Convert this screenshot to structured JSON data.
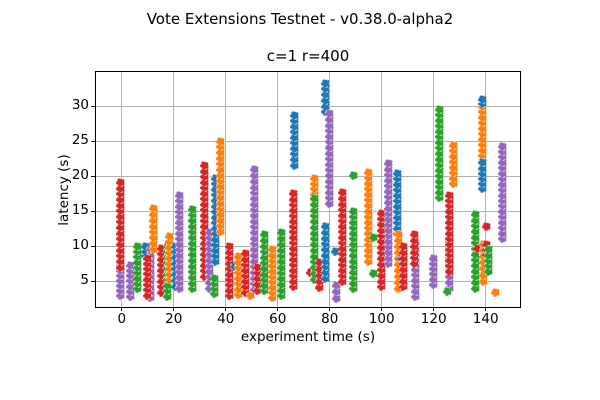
{
  "figure": {
    "suptitle": "Vote Extensions Testnet - v0.38.0-alpha2",
    "axes_title": "c=1 r=400",
    "xlabel": "experiment time (s)",
    "ylabel": "latency (s)"
  },
  "chart_data": {
    "type": "scatter",
    "title": "c=1 r=400",
    "suptitle": "Vote Extensions Testnet - v0.38.0-alpha2",
    "xlabel": "experiment time (s)",
    "ylabel": "latency (s)",
    "xlim": [
      -9.9,
      153.2
    ],
    "ylim": [
      1.3,
      34.9
    ],
    "xticks": [
      0,
      20,
      40,
      60,
      80,
      100,
      120,
      140
    ],
    "yticks": [
      5,
      10,
      15,
      20,
      25,
      30
    ],
    "grid": true,
    "grid_color": "#b2b2b2",
    "legend": "none",
    "marker_size_px": 9,
    "point_spacing_units": 0.8,
    "series_colors": {
      "blue": "#1f77b4",
      "orange": "#ff7f0e",
      "green": "#2ca02c",
      "red": "#d62728",
      "purple": "#9467bd"
    },
    "clusters": [
      {
        "x": -0.6,
        "color": "purple",
        "y0": 2.9,
        "y1": 7.3
      },
      {
        "x": -0.5,
        "color": "red",
        "y0": 7.0,
        "y1": 19.1
      },
      {
        "x": 3.3,
        "color": "purple",
        "y0": 2.8,
        "y1": 7.3
      },
      {
        "x": 5.9,
        "color": "green",
        "y0": 3.9,
        "y1": 10.0
      },
      {
        "x": 9.0,
        "color": "blue",
        "y0": 8.6,
        "y1": 10.0
      },
      {
        "x": 11.2,
        "color": "purple",
        "y0": 2.6,
        "y1": 9.5
      },
      {
        "x": 9.8,
        "color": "red",
        "y0": 3.0,
        "y1": 8.3
      },
      {
        "x": 12.3,
        "color": "orange",
        "y0": 9.5,
        "y1": 15.4
      },
      {
        "x": 15.3,
        "color": "red",
        "y0": 3.4,
        "y1": 9.7
      },
      {
        "x": 17.5,
        "color": "green",
        "y0": 2.8,
        "y1": 10.0
      },
      {
        "x": 18.2,
        "color": "orange",
        "y0": 5.2,
        "y1": 11.4
      },
      {
        "x": 20.8,
        "color": "blue",
        "y0": 4.3,
        "y1": 10.0
      },
      {
        "x": 22.4,
        "color": "purple",
        "y0": 4.0,
        "y1": 17.3
      },
      {
        "x": 27.2,
        "color": "green",
        "y0": 3.9,
        "y1": 15.3
      },
      {
        "x": 31.8,
        "color": "red",
        "y0": 5.7,
        "y1": 21.5
      },
      {
        "x": 33.6,
        "color": "purple",
        "y0": 4.0,
        "y1": 12.0
      },
      {
        "x": 35.9,
        "color": "blue",
        "y0": 7.8,
        "y1": 19.7
      },
      {
        "x": 35.5,
        "color": "green",
        "y0": 3.2,
        "y1": 5.4
      },
      {
        "x": 37.8,
        "color": "orange",
        "y0": 12.1,
        "y1": 25.0
      },
      {
        "x": 41.5,
        "color": "red",
        "y0": 2.9,
        "y1": 9.9
      },
      {
        "x": 43.3,
        "color": "blue",
        "y0": 7.1,
        "y1": 7.1
      },
      {
        "x": 45.0,
        "color": "orange",
        "y0": 3.1,
        "y1": 8.5
      },
      {
        "x": 47.5,
        "color": "red",
        "y0": 3.4,
        "y1": 8.9
      },
      {
        "x": 49.4,
        "color": "orange",
        "y0": 3.0,
        "y1": 3.0
      },
      {
        "x": 51.0,
        "color": "purple",
        "y0": 3.8,
        "y1": 20.9
      },
      {
        "x": 52.3,
        "color": "red",
        "y0": 3.7,
        "y1": 7.0
      },
      {
        "x": 54.8,
        "color": "green",
        "y0": 3.6,
        "y1": 11.6
      },
      {
        "x": 58.0,
        "color": "orange",
        "y0": 2.6,
        "y1": 9.5
      },
      {
        "x": 61.3,
        "color": "green",
        "y0": 2.9,
        "y1": 11.9
      },
      {
        "x": 66.0,
        "color": "red",
        "y0": 4.2,
        "y1": 17.5
      },
      {
        "x": 66.3,
        "color": "blue",
        "y0": 21.6,
        "y1": 28.7
      },
      {
        "x": 72.5,
        "color": "red",
        "y0": 6.3,
        "y1": 6.3
      },
      {
        "x": 74.0,
        "color": "orange",
        "y0": 15.9,
        "y1": 19.7
      },
      {
        "x": 74.0,
        "color": "green",
        "y0": 5.3,
        "y1": 16.8
      },
      {
        "x": 76.0,
        "color": "red",
        "y0": 4.1,
        "y1": 7.6
      },
      {
        "x": 78.4,
        "color": "blue",
        "y0": 5.4,
        "y1": 12.8
      },
      {
        "x": 78.4,
        "color": "blue",
        "y0": 29.2,
        "y1": 33.3
      },
      {
        "x": 80.0,
        "color": "purple",
        "y0": 16.1,
        "y1": 28.9
      },
      {
        "x": 82.3,
        "color": "blue",
        "y0": 9.2,
        "y1": 9.2
      },
      {
        "x": 82.5,
        "color": "purple",
        "y0": 2.5,
        "y1": 4.4
      },
      {
        "x": 85.0,
        "color": "red",
        "y0": 5.0,
        "y1": 17.6
      },
      {
        "x": 89.3,
        "color": "green",
        "y0": 3.9,
        "y1": 15.0
      },
      {
        "x": 89.3,
        "color": "green",
        "y0": 20.1,
        "y1": 20.1
      },
      {
        "x": 94.8,
        "color": "orange",
        "y0": 7.8,
        "y1": 20.6
      },
      {
        "x": 96.8,
        "color": "green",
        "y0": 11.3,
        "y1": 11.3
      },
      {
        "x": 96.8,
        "color": "green",
        "y0": 6.1,
        "y1": 6.1
      },
      {
        "x": 100.0,
        "color": "red",
        "y0": 4.2,
        "y1": 14.7
      },
      {
        "x": 102.5,
        "color": "purple",
        "y0": 7.5,
        "y1": 21.8
      },
      {
        "x": 106.0,
        "color": "blue",
        "y0": 11.8,
        "y1": 20.4
      },
      {
        "x": 106.4,
        "color": "orange",
        "y0": 4.0,
        "y1": 11.6
      },
      {
        "x": 107.5,
        "color": "blue",
        "y0": 8.2,
        "y1": 8.2
      },
      {
        "x": 108.2,
        "color": "red",
        "y0": 4.2,
        "y1": 9.9
      },
      {
        "x": 113.0,
        "color": "purple",
        "y0": 2.8,
        "y1": 10.5
      },
      {
        "x": 112.6,
        "color": "red",
        "y0": 7.5,
        "y1": 11.6
      },
      {
        "x": 120.0,
        "color": "purple",
        "y0": 4.5,
        "y1": 8.3
      },
      {
        "x": 122.2,
        "color": "green",
        "y0": 16.9,
        "y1": 29.6
      },
      {
        "x": 126.0,
        "color": "purple",
        "y0": 4.0,
        "y1": 10.7
      },
      {
        "x": 126.0,
        "color": "red",
        "y0": 6.4,
        "y1": 17.3
      },
      {
        "x": 125.4,
        "color": "green",
        "y0": 3.5,
        "y1": 3.5
      },
      {
        "x": 127.8,
        "color": "orange",
        "y0": 18.9,
        "y1": 24.4
      },
      {
        "x": 136.0,
        "color": "green",
        "y0": 4.0,
        "y1": 14.5
      },
      {
        "x": 136.7,
        "color": "red",
        "y0": 9.7,
        "y1": 9.7
      },
      {
        "x": 139.3,
        "color": "orange",
        "y0": 5.0,
        "y1": 10.2
      },
      {
        "x": 138.6,
        "color": "orange",
        "y0": 22.1,
        "y1": 30.0
      },
      {
        "x": 138.6,
        "color": "blue",
        "y0": 30.4,
        "y1": 30.9
      },
      {
        "x": 138.6,
        "color": "blue",
        "y0": 18.2,
        "y1": 21.9
      },
      {
        "x": 140.5,
        "color": "red",
        "y0": 12.8,
        "y1": 12.8
      },
      {
        "x": 140.2,
        "color": "red",
        "y0": 8.8,
        "y1": 10.2
      },
      {
        "x": 141.2,
        "color": "green",
        "y0": 6.4,
        "y1": 9.5
      },
      {
        "x": 143.7,
        "color": "orange",
        "y0": 3.4,
        "y1": 3.4
      },
      {
        "x": 146.3,
        "color": "purple",
        "y0": 11.1,
        "y1": 24.3
      }
    ]
  }
}
